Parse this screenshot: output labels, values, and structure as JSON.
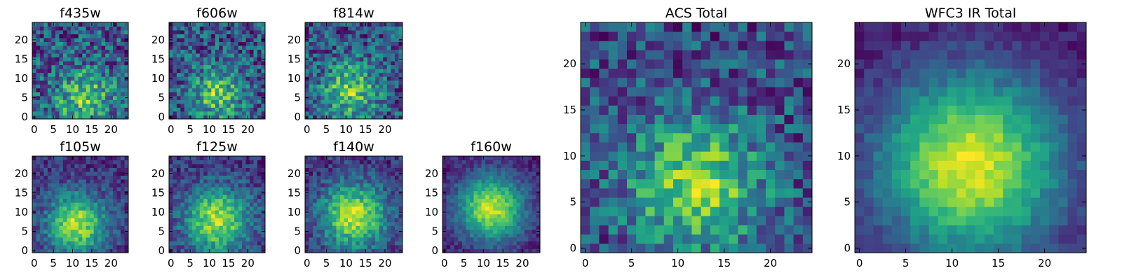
{
  "chart_data": [
    {
      "type": "heatmap",
      "title": "f435w",
      "xticks": [
        "0",
        "5",
        "10",
        "15",
        "20"
      ],
      "yticks": [
        "0",
        "5",
        "10",
        "15",
        "20"
      ],
      "xlim": [
        -0.5,
        24.5
      ],
      "ylim": [
        -0.5,
        24.5
      ],
      "grid_size": 25,
      "peak": [
        13,
        5
      ],
      "sigma": 5.0,
      "contrast": 0.45,
      "noise": 0.6,
      "seed": 11,
      "colormap": "viridis"
    },
    {
      "type": "heatmap",
      "title": "f606w",
      "xticks": [
        "0",
        "5",
        "10",
        "15",
        "20"
      ],
      "yticks": [
        "0",
        "5",
        "10",
        "15",
        "20"
      ],
      "xlim": [
        -0.5,
        24.5
      ],
      "ylim": [
        -0.5,
        24.5
      ],
      "grid_size": 25,
      "peak": [
        12,
        6
      ],
      "sigma": 4.5,
      "contrast": 0.5,
      "noise": 0.6,
      "seed": 23,
      "colormap": "viridis"
    },
    {
      "type": "heatmap",
      "title": "f814w",
      "xticks": [
        "0",
        "5",
        "10",
        "15",
        "20"
      ],
      "yticks": [
        "0",
        "5",
        "10",
        "15",
        "20"
      ],
      "xlim": [
        -0.5,
        24.5
      ],
      "ylim": [
        -0.5,
        24.5
      ],
      "grid_size": 25,
      "peak": [
        11,
        7
      ],
      "sigma": 5.0,
      "contrast": 0.5,
      "noise": 0.55,
      "seed": 37,
      "colormap": "viridis"
    },
    {
      "type": "heatmap",
      "title": "f105w",
      "xticks": [
        "0",
        "5",
        "10",
        "15",
        "20"
      ],
      "yticks": [
        "0",
        "5",
        "10",
        "15",
        "20"
      ],
      "xlim": [
        -0.5,
        24.5
      ],
      "ylim": [
        -0.5,
        24.5
      ],
      "grid_size": 25,
      "peak": [
        11,
        7
      ],
      "sigma": 5.5,
      "contrast": 0.7,
      "noise": 0.3,
      "seed": 41,
      "colormap": "viridis"
    },
    {
      "type": "heatmap",
      "title": "f125w",
      "xticks": [
        "0",
        "5",
        "10",
        "15",
        "20"
      ],
      "yticks": [
        "0",
        "5",
        "10",
        "15",
        "20"
      ],
      "xlim": [
        -0.5,
        24.5
      ],
      "ylim": [
        -0.5,
        24.5
      ],
      "grid_size": 25,
      "peak": [
        12,
        8
      ],
      "sigma": 6.0,
      "contrast": 0.65,
      "noise": 0.3,
      "seed": 53,
      "colormap": "viridis"
    },
    {
      "type": "heatmap",
      "title": "f140w",
      "xticks": [
        "0",
        "5",
        "10",
        "15",
        "20"
      ],
      "yticks": [
        "0",
        "5",
        "10",
        "15",
        "20"
      ],
      "xlim": [
        -0.5,
        24.5
      ],
      "ylim": [
        -0.5,
        24.5
      ],
      "grid_size": 25,
      "peak": [
        12,
        9
      ],
      "sigma": 6.0,
      "contrast": 0.7,
      "noise": 0.3,
      "seed": 67,
      "colormap": "viridis"
    },
    {
      "type": "heatmap",
      "title": "f160w",
      "xticks": [
        "0",
        "5",
        "10",
        "15",
        "20"
      ],
      "yticks": [
        "0",
        "5",
        "10",
        "15",
        "20"
      ],
      "xlim": [
        -0.5,
        24.5
      ],
      "ylim": [
        -0.5,
        24.5
      ],
      "grid_size": 25,
      "peak": [
        12,
        11
      ],
      "sigma": 6.0,
      "contrast": 0.8,
      "noise": 0.2,
      "seed": 79,
      "colormap": "viridis"
    },
    {
      "type": "heatmap",
      "title": "ACS Total",
      "xticks": [
        "0",
        "5",
        "10",
        "15",
        "20"
      ],
      "yticks": [
        "0",
        "5",
        "10",
        "15",
        "20"
      ],
      "xlim": [
        -0.5,
        24.5
      ],
      "ylim": [
        -0.5,
        24.5
      ],
      "grid_size": 25,
      "peak": [
        12,
        7
      ],
      "sigma": 5.0,
      "contrast": 0.55,
      "noise": 0.45,
      "seed": 97,
      "colormap": "viridis"
    },
    {
      "type": "heatmap",
      "title": "WFC3 IR Total",
      "xticks": [
        "0",
        "5",
        "10",
        "15",
        "20"
      ],
      "yticks": [
        "0",
        "5",
        "10",
        "15",
        "20"
      ],
      "xlim": [
        -0.5,
        24.5
      ],
      "ylim": [
        -0.5,
        24.5
      ],
      "grid_size": 25,
      "peak": [
        12,
        9
      ],
      "sigma": 7.0,
      "contrast": 0.85,
      "noise": 0.15,
      "seed": 113,
      "colormap": "viridis"
    }
  ]
}
